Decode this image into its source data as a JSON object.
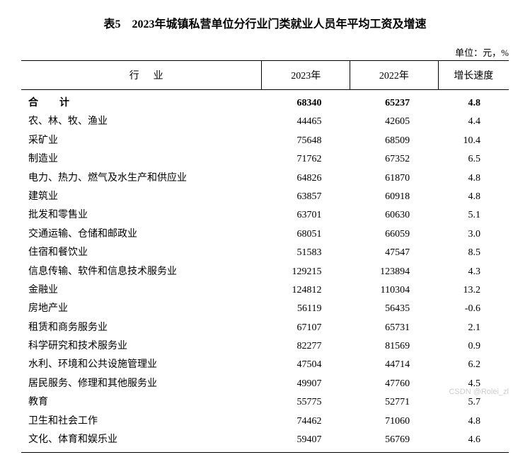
{
  "title": "表5　2023年城镇私营单位分行业门类就业人员年平均工资及增速",
  "unit": "单位：元，%",
  "header": {
    "industry": "行业",
    "y2023": "2023年",
    "y2022": "2022年",
    "growth": "增长速度"
  },
  "total": {
    "label": "合　计",
    "y2023": "68340",
    "y2022": "65237",
    "growth": "4.8"
  },
  "rows": [
    {
      "label": "农、林、牧、渔业",
      "y2023": "44465",
      "y2022": "42605",
      "growth": "4.4"
    },
    {
      "label": "采矿业",
      "y2023": "75648",
      "y2022": "68509",
      "growth": "10.4"
    },
    {
      "label": "制造业",
      "y2023": "71762",
      "y2022": "67352",
      "growth": "6.5"
    },
    {
      "label": "电力、热力、燃气及水生产和供应业",
      "y2023": "64826",
      "y2022": "61870",
      "growth": "4.8"
    },
    {
      "label": "建筑业",
      "y2023": "63857",
      "y2022": "60918",
      "growth": "4.8"
    },
    {
      "label": "批发和零售业",
      "y2023": "63701",
      "y2022": "60630",
      "growth": "5.1"
    },
    {
      "label": "交通运输、仓储和邮政业",
      "y2023": "68051",
      "y2022": "66059",
      "growth": "3.0"
    },
    {
      "label": "住宿和餐饮业",
      "y2023": "51583",
      "y2022": "47547",
      "growth": "8.5"
    },
    {
      "label": "信息传输、软件和信息技术服务业",
      "y2023": "129215",
      "y2022": "123894",
      "growth": "4.3"
    },
    {
      "label": "金融业",
      "y2023": "124812",
      "y2022": "110304",
      "growth": "13.2"
    },
    {
      "label": "房地产业",
      "y2023": "56119",
      "y2022": "56435",
      "growth": "-0.6"
    },
    {
      "label": "租赁和商务服务业",
      "y2023": "67107",
      "y2022": "65731",
      "growth": "2.1"
    },
    {
      "label": "科学研究和技术服务业",
      "y2023": "82277",
      "y2022": "81569",
      "growth": "0.9"
    },
    {
      "label": "水利、环境和公共设施管理业",
      "y2023": "47504",
      "y2022": "44714",
      "growth": "6.2"
    },
    {
      "label": "居民服务、修理和其他服务业",
      "y2023": "49907",
      "y2022": "47760",
      "growth": "4.5"
    },
    {
      "label": "教育",
      "y2023": "55775",
      "y2022": "52771",
      "growth": "5.7"
    },
    {
      "label": "卫生和社会工作",
      "y2023": "74462",
      "y2022": "71060",
      "growth": "4.8"
    },
    {
      "label": "文化、体育和娱乐业",
      "y2023": "59407",
      "y2022": "56769",
      "growth": "4.6"
    }
  ],
  "watermark": "CSDN @Rolei_zl"
}
